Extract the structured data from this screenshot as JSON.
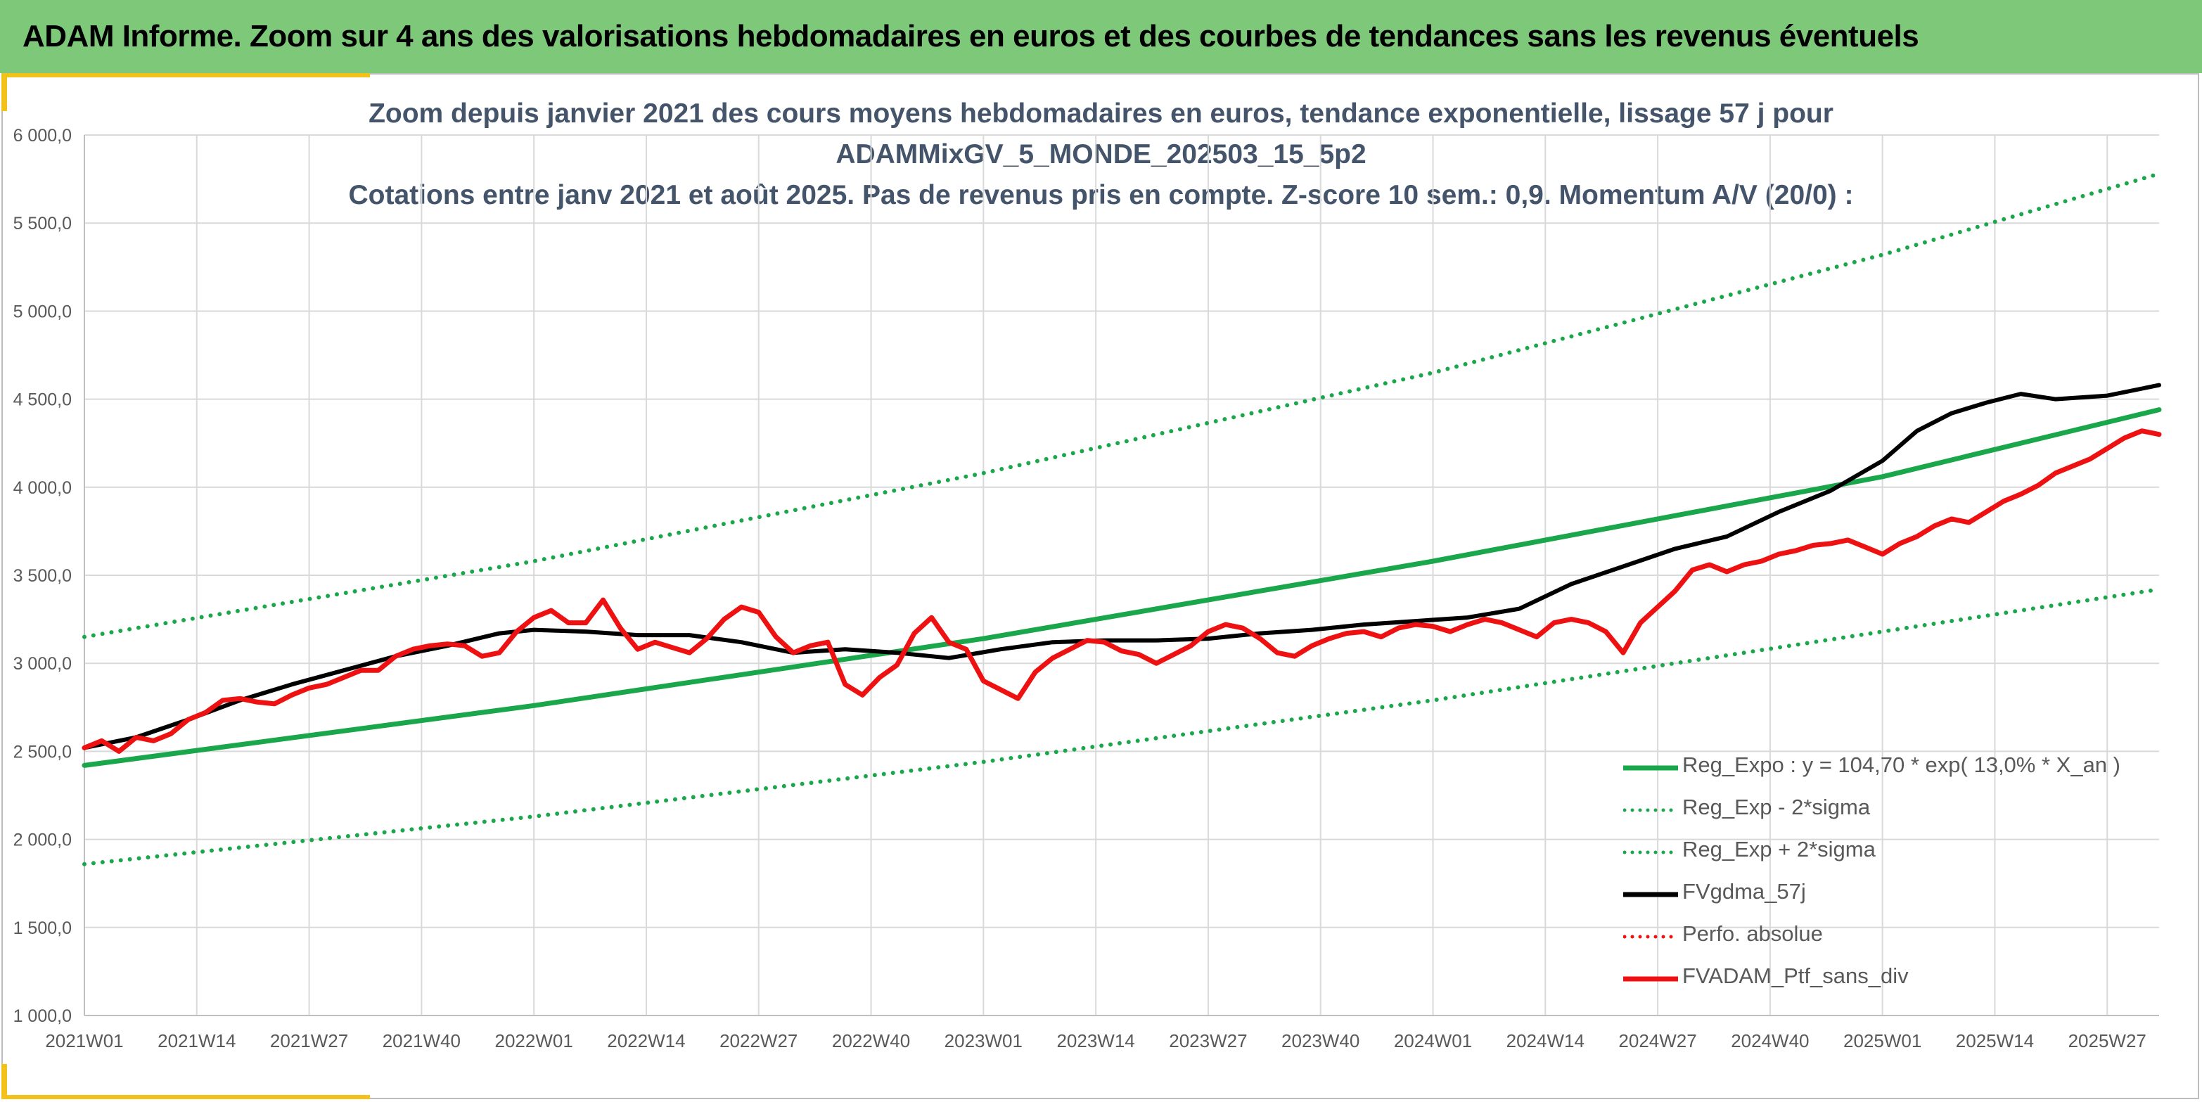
{
  "banner": {
    "title": "ADAM Informe. Zoom sur 4 ans des valorisations hebdomadaires en euros et des courbes de tendances sans les revenus éventuels"
  },
  "colors": {
    "banner_bg": "#7ec87a",
    "accent": "#f2c21b",
    "trend_green": "#1aa64a",
    "smoothed_black": "#000000",
    "portfolio_red": "#ee1111"
  },
  "chart_data": {
    "type": "line",
    "title_lines": [
      "Zoom depuis janvier 2021 des cours moyens hebdomadaires en euros, tendance exponentielle, lissage 57 j pour",
      "ADAMMixGV_5_MONDE_202503_15_5p2",
      "Cotations entre janv 2021 et août 2025. Pas de revenus pris en compte. Z-score 10 sem.: 0,9. Momentum A/V (20/0) :"
    ],
    "x_tick_labels": [
      "2021W01",
      "2021W14",
      "2021W27",
      "2021W40",
      "2022W01",
      "2022W14",
      "2022W27",
      "2022W40",
      "2023W01",
      "2023W14",
      "2023W27",
      "2023W40",
      "2024W01",
      "2024W14",
      "2024W27",
      "2024W40",
      "2025W01",
      "2025W14",
      "2025W27"
    ],
    "x_unit": "week index from 2021W01 (13 weeks per tick)",
    "xlim": [
      0,
      240
    ],
    "ylim": [
      1000,
      6000
    ],
    "y_ticks": [
      1000,
      1500,
      2000,
      2500,
      3000,
      3500,
      4000,
      4500,
      5000,
      5500,
      6000
    ],
    "y_tick_labels": [
      "1 000,0",
      "1 500,0",
      "2 000,0",
      "2 500,0",
      "3 000,0",
      "3 500,0",
      "4 000,0",
      "4 500,0",
      "5 000,0",
      "5 500,0",
      "6 000,0"
    ],
    "grid": true,
    "legend_position": "bottom-right",
    "series": [
      {
        "name": "Reg_Expo : y = 104,70 * exp( 13,0% *  X_an )",
        "style": "solid-thick",
        "color": "#1aa64a",
        "x": [
          0,
          52,
          104,
          156,
          208,
          240
        ],
        "y": [
          2420,
          2760,
          3140,
          3580,
          4060,
          4440
        ]
      },
      {
        "name": "Reg_Exp - 2*sigma",
        "style": "dotted",
        "color": "#1aa64a",
        "x": [
          0,
          52,
          104,
          156,
          208,
          240
        ],
        "y": [
          1860,
          2130,
          2440,
          2790,
          3180,
          3420
        ]
      },
      {
        "name": "Reg_Exp + 2*sigma",
        "style": "dotted",
        "color": "#1aa64a",
        "x": [
          0,
          52,
          104,
          156,
          208,
          240
        ],
        "y": [
          3150,
          3580,
          4080,
          4650,
          5320,
          5780
        ]
      },
      {
        "name": "FVgdma_57j",
        "style": "solid",
        "color": "#000000",
        "x": [
          0,
          6,
          12,
          18,
          24,
          30,
          36,
          42,
          48,
          52,
          58,
          64,
          70,
          76,
          82,
          88,
          94,
          100,
          106,
          112,
          118,
          124,
          130,
          136,
          142,
          148,
          154,
          160,
          166,
          172,
          178,
          184,
          190,
          196,
          202,
          208,
          212,
          216,
          220,
          224,
          228,
          234,
          240
        ],
        "y": [
          2520,
          2580,
          2680,
          2790,
          2880,
          2960,
          3040,
          3100,
          3170,
          3190,
          3180,
          3160,
          3160,
          3120,
          3060,
          3080,
          3060,
          3030,
          3080,
          3120,
          3130,
          3130,
          3140,
          3170,
          3190,
          3220,
          3240,
          3260,
          3310,
          3450,
          3550,
          3650,
          3720,
          3860,
          3980,
          4150,
          4320,
          4420,
          4480,
          4530,
          4500,
          4520,
          4580
        ]
      },
      {
        "name": "Perfo. absolue",
        "style": "dotted",
        "color": "#ee1111",
        "x": [],
        "y": []
      },
      {
        "name": "FVADAM_Ptf_sans_div",
        "style": "solid-thick",
        "color": "#ee1111",
        "x": [
          0,
          2,
          4,
          6,
          8,
          10,
          12,
          14,
          16,
          18,
          20,
          22,
          24,
          26,
          28,
          30,
          32,
          34,
          36,
          38,
          40,
          42,
          44,
          46,
          48,
          50,
          52,
          54,
          56,
          58,
          60,
          62,
          64,
          66,
          68,
          70,
          72,
          74,
          76,
          78,
          80,
          82,
          84,
          86,
          88,
          90,
          92,
          94,
          96,
          98,
          100,
          102,
          104,
          106,
          108,
          110,
          112,
          114,
          116,
          118,
          120,
          122,
          124,
          126,
          128,
          130,
          132,
          134,
          136,
          138,
          140,
          142,
          144,
          146,
          148,
          150,
          152,
          154,
          156,
          158,
          160,
          162,
          164,
          166,
          168,
          170,
          172,
          174,
          176,
          178,
          180,
          182,
          184,
          186,
          188,
          190,
          192,
          194,
          196,
          198,
          200,
          202,
          204,
          206,
          208,
          210,
          212,
          214,
          216,
          218,
          220,
          222,
          224,
          226,
          228,
          230,
          232,
          234,
          236,
          238,
          240
        ],
        "y": [
          2520,
          2560,
          2500,
          2580,
          2560,
          2600,
          2680,
          2720,
          2790,
          2800,
          2780,
          2770,
          2820,
          2860,
          2880,
          2920,
          2960,
          2960,
          3040,
          3080,
          3100,
          3110,
          3100,
          3040,
          3060,
          3180,
          3260,
          3300,
          3230,
          3230,
          3360,
          3200,
          3080,
          3120,
          3090,
          3060,
          3140,
          3250,
          3320,
          3290,
          3150,
          3060,
          3100,
          3120,
          2880,
          2820,
          2920,
          2990,
          3170,
          3260,
          3120,
          3080,
          2900,
          2850,
          2800,
          2950,
          3030,
          3080,
          3130,
          3120,
          3070,
          3050,
          3000,
          3050,
          3100,
          3180,
          3220,
          3200,
          3140,
          3060,
          3040,
          3100,
          3140,
          3170,
          3180,
          3150,
          3200,
          3220,
          3210,
          3180,
          3220,
          3250,
          3230,
          3190,
          3150,
          3230,
          3250,
          3230,
          3180,
          3060,
          3230,
          3320,
          3410,
          3530,
          3560,
          3520,
          3560,
          3580,
          3620,
          3640,
          3670,
          3680,
          3700,
          3660,
          3620,
          3680,
          3720,
          3780,
          3820,
          3800,
          3860,
          3920,
          3960,
          4010,
          4080,
          4120,
          4160,
          4220,
          4280,
          4320,
          4300
        ]
      }
    ]
  },
  "legend": [
    {
      "label": "Reg_Expo : y = 104,70 * exp( 13,0% *  X_an )",
      "color": "#1aa64a",
      "style": "solid-thick"
    },
    {
      "label": "Reg_Exp - 2*sigma",
      "color": "#1aa64a",
      "style": "dotted"
    },
    {
      "label": "Reg_Exp + 2*sigma",
      "color": "#1aa64a",
      "style": "dotted"
    },
    {
      "label": "FVgdma_57j",
      "color": "#000000",
      "style": "solid-thick"
    },
    {
      "label": "Perfo. absolue",
      "color": "#ee1111",
      "style": "dotted"
    },
    {
      "label": "FVADAM_Ptf_sans_div",
      "color": "#ee1111",
      "style": "solid-thick"
    }
  ]
}
